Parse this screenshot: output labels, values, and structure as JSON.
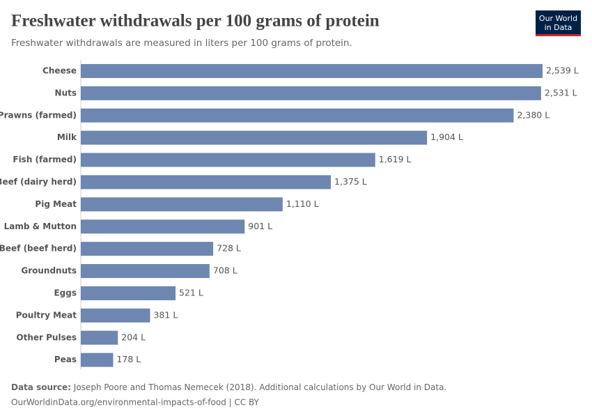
{
  "chart_data": {
    "type": "bar",
    "orientation": "horizontal",
    "title": "Freshwater withdrawals per 100 grams of protein",
    "subtitle": "Freshwater withdrawals are measured in liters per 100 grams of protein.",
    "categories": [
      "Cheese",
      "Nuts",
      "Prawns (farmed)",
      "Milk",
      "Fish (farmed)",
      "Beef (dairy herd)",
      "Pig Meat",
      "Lamb & Mutton",
      "Beef (beef herd)",
      "Groundnuts",
      "Eggs",
      "Poultry Meat",
      "Other Pulses",
      "Peas"
    ],
    "values": [
      2539,
      2531,
      2380,
      1904,
      1619,
      1375,
      1110,
      901,
      728,
      708,
      521,
      381,
      204,
      178
    ],
    "value_labels": [
      "2,539 L",
      "2,531 L",
      "2,380 L",
      "1,904 L",
      "1,619 L",
      "1,375 L",
      "1,110 L",
      "901 L",
      "728 L",
      "708 L",
      "521 L",
      "381 L",
      "204 L",
      "178 L"
    ],
    "color": "#6d87b1",
    "source_label": "Data source:",
    "source_text": "Joseph Poore and Thomas Nemecek (2018). Additional calculations by Our World in Data.",
    "url_line": "OurWorldinData.org/environmental-impacts-of-food | CC BY",
    "logo": [
      "Our World",
      "in Data"
    ]
  }
}
